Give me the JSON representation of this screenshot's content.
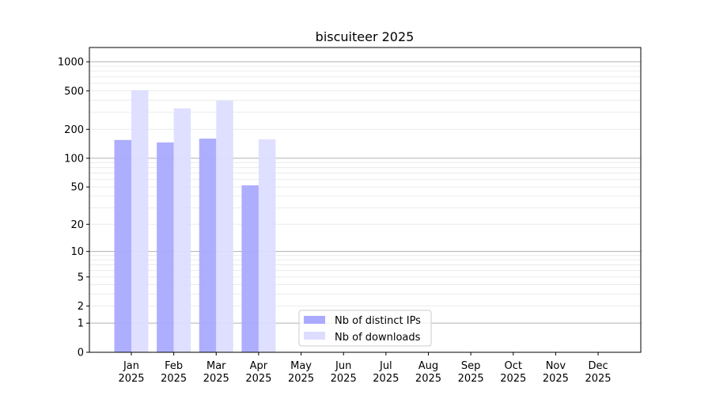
{
  "chart_data": {
    "type": "bar",
    "title": "biscuiteer 2025",
    "xlabel": "",
    "ylabel": "",
    "yscale": "log(1+x)",
    "ylim": [
      0,
      1300
    ],
    "yticks": [
      0,
      1,
      2,
      5,
      10,
      20,
      50,
      100,
      200,
      500,
      1000
    ],
    "grid": true,
    "legend": "bottom-center",
    "categories": [
      "Jan\n2025",
      "Feb\n2025",
      "Mar\n2025",
      "Apr\n2025",
      "May\n2025",
      "Jun\n2025",
      "Jul\n2025",
      "Aug\n2025",
      "Sep\n2025",
      "Oct\n2025",
      "Nov\n2025",
      "Dec\n2025"
    ],
    "series": [
      {
        "name": "Nb of distinct IPs",
        "color": "#aaaaff",
        "values": [
          155,
          146,
          160,
          52,
          null,
          null,
          null,
          null,
          null,
          null,
          null,
          null
        ]
      },
      {
        "name": "Nb of downloads",
        "color": "#ddddff",
        "values": [
          508,
          329,
          397,
          157,
          null,
          null,
          null,
          null,
          null,
          null,
          null,
          null
        ]
      }
    ]
  }
}
